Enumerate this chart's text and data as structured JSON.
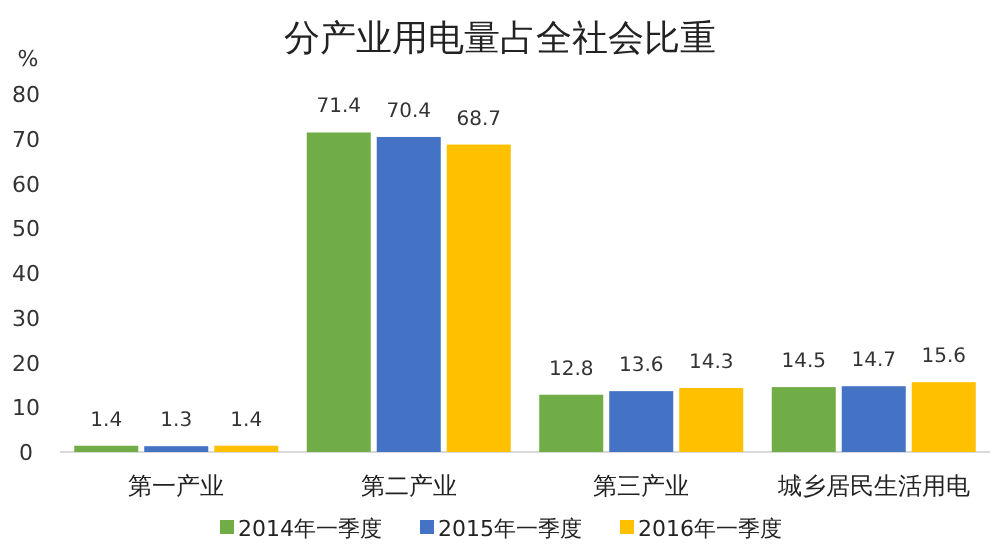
{
  "chart_data": {
    "type": "bar",
    "title": "分产业用电量占全社会比重",
    "ylabel": "%",
    "categories": [
      "第一产业",
      "第二产业",
      "第三产业",
      "城乡居民生活用电"
    ],
    "series": [
      {
        "name": "2014年一季度",
        "color": "#70ad47",
        "values": [
          1.4,
          71.4,
          12.8,
          14.5
        ]
      },
      {
        "name": "2015年一季度",
        "color": "#4472c4",
        "values": [
          1.3,
          70.4,
          13.6,
          14.7
        ]
      },
      {
        "name": "2016年一季度",
        "color": "#ffc000",
        "values": [
          1.4,
          68.7,
          14.3,
          15.6
        ]
      }
    ],
    "ylim": [
      0,
      80
    ],
    "yticks": [
      0,
      10,
      20,
      30,
      40,
      50,
      60,
      70,
      80
    ],
    "data_labels": true,
    "grid": false,
    "legend": "bottom"
  }
}
